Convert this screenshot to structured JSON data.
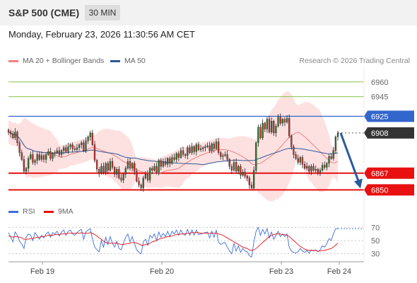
{
  "header": {
    "symbol": "S&P 500 (CME)",
    "timeframe": "30 MIN",
    "datetime": "Monday, February 23, 2026 11:30:56 AM CET"
  },
  "legend": {
    "ma20": "MA 20 + Bollinger Bands",
    "ma50": "MA 50",
    "rsi": "RSI",
    "ma9": "9MA"
  },
  "research": "Research © 2026 Trading Central",
  "colors": {
    "ma20": "#f08080",
    "ma50": "#2b5797",
    "resistance_green": "#8bc34a",
    "current_line": "#3366cc",
    "support_red": "#e81010",
    "arrow": "#2b5aa0"
  },
  "chart_data": [
    {
      "type": "candlestick",
      "ylim": [
        6838,
        6975
      ],
      "x_ticks": [
        "Feb 19",
        "Feb 20",
        "Feb 23",
        "Feb 24"
      ],
      "close": [
        6909,
        6907,
        6903,
        6909,
        6898,
        6888,
        6881,
        6869,
        6872,
        6882,
        6886,
        6878,
        6880,
        6886,
        6881,
        6885,
        6881,
        6886,
        6889,
        6882,
        6887,
        6888,
        6890,
        6886,
        6890,
        6893,
        6889,
        6894,
        6896,
        6892,
        6891,
        6893,
        6896,
        6898,
        6890,
        6900,
        6904,
        6908,
        6896,
        6880,
        6871,
        6867,
        6874,
        6868,
        6877,
        6870,
        6879,
        6873,
        6866,
        6871,
        6862,
        6860,
        6866,
        6872,
        6879,
        6872,
        6877,
        6869,
        6859,
        6855,
        6852,
        6862,
        6866,
        6860,
        6872,
        6870,
        6874,
        6868,
        6880,
        6874,
        6879,
        6876,
        6882,
        6877,
        6883,
        6881,
        6887,
        6883,
        6890,
        6886,
        6885,
        6893,
        6888,
        6894,
        6889,
        6896,
        6891,
        6892,
        6893,
        6894,
        6895,
        6890,
        6897,
        6892,
        6899,
        6888,
        6884,
        6885,
        6886,
        6881,
        6874,
        6870,
        6878,
        6869,
        6874,
        6865,
        6868,
        6864,
        6862,
        6855,
        6852,
        6870,
        6898,
        6914,
        6903,
        6918,
        6912,
        6922,
        6909,
        6920,
        6908,
        6915,
        6924,
        6918,
        6922,
        6919,
        6923,
        6905,
        6894,
        6886,
        6882,
        6878,
        6883,
        6876,
        6872,
        6874,
        6869,
        6874,
        6870,
        6871,
        6868,
        6870,
        6875,
        6873,
        6877,
        6884,
        6882,
        6890,
        6904,
        6908
      ],
      "support": [
        6867,
        6850
      ],
      "resistance": [
        6960,
        6945
      ],
      "current": 6925,
      "last": 6908,
      "level_labels": [
        "6960",
        "6945",
        "6925",
        "6908",
        "6867",
        "6850"
      ]
    },
    {
      "type": "line",
      "ylim": [
        20,
        80
      ],
      "y_ticks": [
        "70",
        "50",
        "30"
      ],
      "series": [
        {
          "name": "RSI",
          "values": [
            62,
            55,
            48,
            63,
            58,
            49,
            45,
            38,
            55,
            60,
            58,
            50,
            62,
            57,
            52,
            58,
            54,
            60,
            63,
            55,
            62,
            60,
            64,
            57,
            63,
            66,
            58,
            64,
            66,
            60,
            58,
            62,
            65,
            67,
            52,
            63,
            66,
            68,
            52,
            40,
            36,
            33,
            50,
            40,
            55,
            44,
            56,
            46,
            40,
            49,
            38,
            36,
            46,
            55,
            60,
            48,
            56,
            45,
            36,
            32,
            30,
            48,
            52,
            43,
            58,
            54,
            60,
            50,
            63,
            55,
            61,
            56,
            64,
            56,
            64,
            60,
            66,
            58,
            66,
            60,
            58,
            67,
            58,
            66,
            58,
            66,
            59,
            60,
            61,
            62,
            63,
            54,
            64,
            55,
            66,
            48,
            44,
            46,
            47,
            40,
            34,
            30,
            46,
            34,
            42,
            32,
            38,
            34,
            33,
            27,
            25,
            48,
            64,
            70,
            58,
            67,
            60,
            68,
            54,
            63,
            52,
            58,
            64,
            56,
            60,
            56,
            60,
            40,
            34,
            32,
            31,
            33,
            38,
            34,
            32,
            35,
            31,
            36,
            34,
            36,
            33,
            36,
            42,
            40,
            45,
            53,
            50,
            60,
            68,
            68
          ]
        },
        {
          "name": "9MA",
          "values": [
            57,
            56,
            55,
            56,
            56,
            55,
            54,
            52,
            52,
            52,
            53,
            53,
            54,
            55,
            55,
            56,
            56,
            57,
            58,
            58,
            58,
            59,
            59,
            59,
            60,
            60,
            60,
            61,
            61,
            61,
            61,
            61,
            61,
            62,
            61,
            61,
            61,
            62,
            61,
            59,
            57,
            54,
            52,
            49,
            47,
            46,
            46,
            46,
            46,
            46,
            45,
            44,
            44,
            45,
            45,
            46,
            47,
            47,
            46,
            45,
            43,
            43,
            44,
            44,
            46,
            48,
            49,
            50,
            52,
            53,
            54,
            55,
            56,
            56,
            57,
            58,
            59,
            59,
            60,
            60,
            60,
            61,
            61,
            62,
            62,
            62,
            62,
            61,
            61,
            61,
            61,
            61,
            61,
            61,
            61,
            60,
            59,
            58,
            56,
            54,
            52,
            50,
            48,
            46,
            44,
            42,
            40,
            39,
            38,
            36,
            35,
            36,
            38,
            41,
            44,
            47,
            50,
            53,
            56,
            58,
            59,
            60,
            60,
            60,
            59,
            59,
            58,
            56,
            53,
            50,
            47,
            44,
            41,
            39,
            37,
            36,
            35,
            35,
            35,
            35,
            34,
            34,
            35,
            35,
            36,
            37,
            38,
            40,
            43,
            46
          ]
        }
      ]
    }
  ]
}
